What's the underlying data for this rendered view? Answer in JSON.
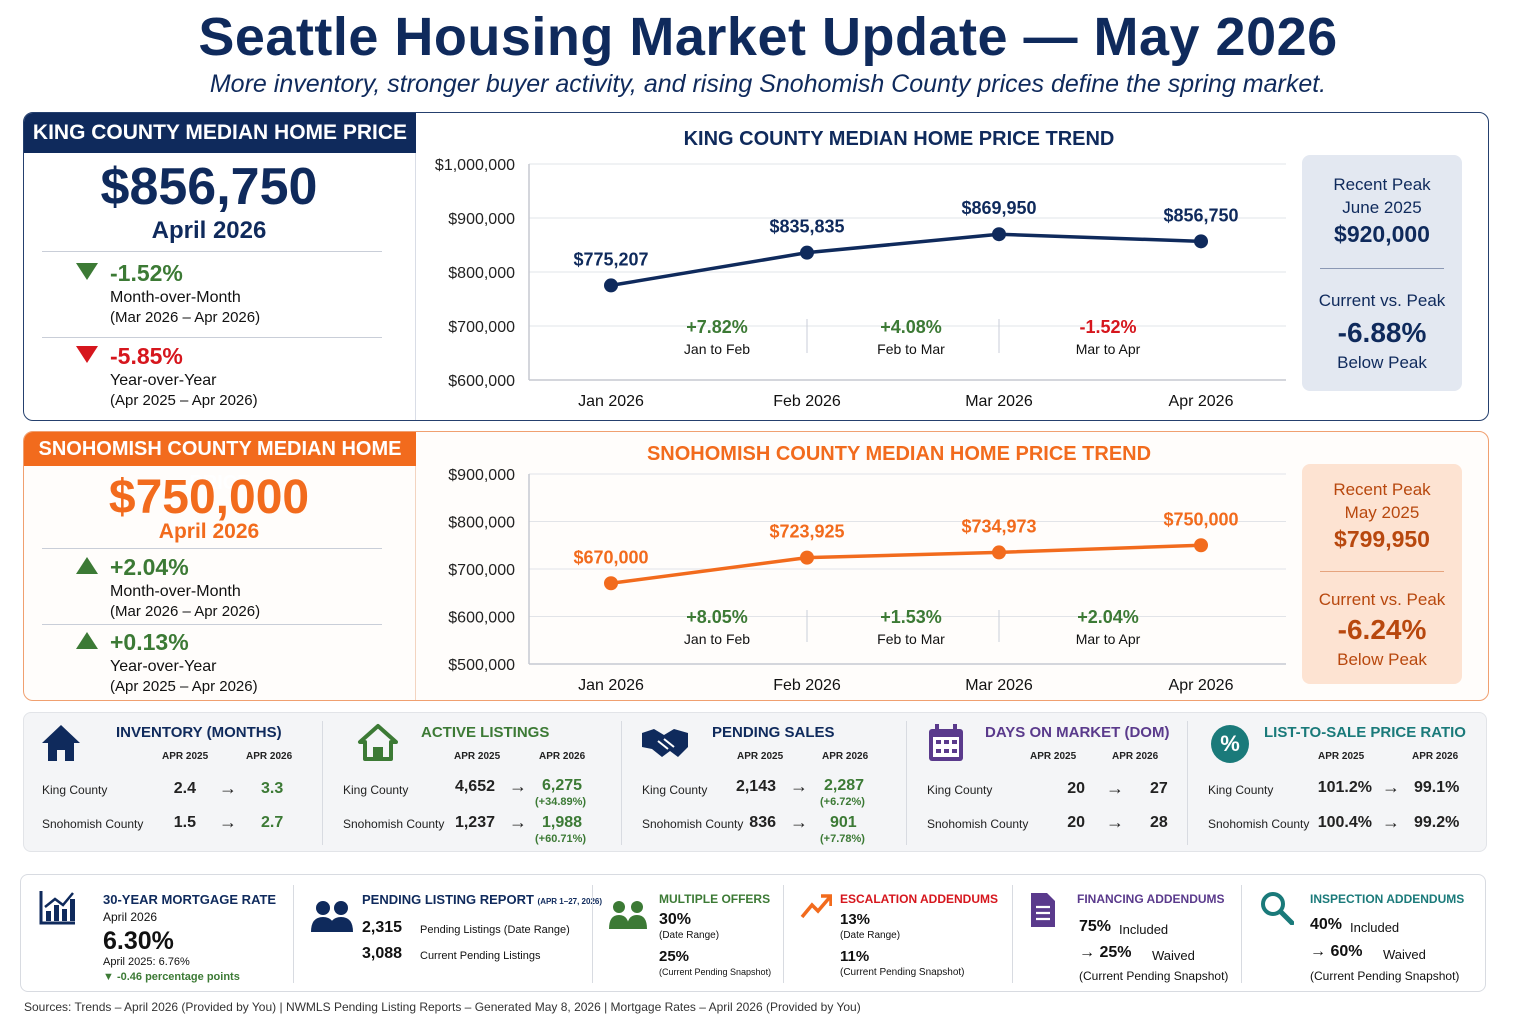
{
  "title": "Seattle Housing Market Update — May 2026",
  "subtitle": "More inventory, stronger buyer activity, and rising Snohomish County prices define the spring market.",
  "king": {
    "header": "KING COUNTY MEDIAN HOME PRICE",
    "value": "$856,750",
    "date": "April 2026",
    "mom": {
      "pct": "-1.52%",
      "label": "Month-over-Month",
      "range": "(Mar 2026 – Apr 2026)"
    },
    "yoy": {
      "pct": "-5.85%",
      "label": "Year-over-Year",
      "range": "(Apr 2025 – Apr 2026)"
    },
    "peak": {
      "l1": "Recent Peak",
      "l2": "June 2025",
      "value": "$920,000",
      "cv": "Current vs. Peak",
      "pct": "-6.88%",
      "below": "Below Peak"
    }
  },
  "snoh": {
    "header": "SNOHOMISH COUNTY MEDIAN HOME PRICE",
    "value": "$750,000",
    "date": "April 2026",
    "mom": {
      "pct": "+2.04%",
      "label": "Month-over-Month",
      "range": "(Mar 2026 – Apr 2026)"
    },
    "yoy": {
      "pct": "+0.13%",
      "label": "Year-over-Year",
      "range": "(Apr 2025 – Apr 2026)"
    },
    "peak": {
      "l1": "Recent Peak",
      "l2": "May 2025",
      "value": "$799,950",
      "cv": "Current vs. Peak",
      "pct": "-6.24%",
      "below": "Below Peak"
    }
  },
  "chart_data": [
    {
      "type": "line",
      "title": "KING COUNTY MEDIAN HOME PRICE TREND",
      "categories": [
        "Jan 2026",
        "Feb 2026",
        "Mar 2026",
        "Apr 2026"
      ],
      "values": [
        775207,
        835835,
        869950,
        856750
      ],
      "labels": [
        "$775,207",
        "$835,835",
        "$869,950",
        "$856,750"
      ],
      "ylim": [
        600000,
        1000000
      ],
      "yticks": [
        "$1,000,000",
        "$900,000",
        "$800,000",
        "$700,000",
        "$600,000"
      ],
      "ytick_values": [
        1000000,
        900000,
        800000,
        700000,
        600000
      ],
      "changes": [
        {
          "pct": "+7.82%",
          "label": "Jan to Feb",
          "color": "#3c7a35"
        },
        {
          "pct": "+4.08%",
          "label": "Feb to Mar",
          "color": "#3c7a35"
        },
        {
          "pct": "-1.52%",
          "label": "Mar to Apr",
          "color": "#d6161d"
        }
      ],
      "color": "#0f2a5c",
      "grid": true
    },
    {
      "type": "line",
      "title": "SNOHOMISH COUNTY MEDIAN HOME PRICE TREND",
      "categories": [
        "Jan 2026",
        "Feb 2026",
        "Mar 2026",
        "Apr 2026"
      ],
      "values": [
        670000,
        723925,
        734973,
        750000
      ],
      "labels": [
        "$670,000",
        "$723,925",
        "$734,973",
        "$750,000"
      ],
      "ylim": [
        500000,
        900000
      ],
      "yticks": [
        "$900,000",
        "$800,000",
        "$700,000",
        "$600,000",
        "$500,000"
      ],
      "ytick_values": [
        900000,
        800000,
        700000,
        600000,
        500000
      ],
      "changes": [
        {
          "pct": "+8.05%",
          "label": "Jan to Feb",
          "color": "#3c7a35"
        },
        {
          "pct": "+1.53%",
          "label": "Feb to Mar",
          "color": "#3c7a35"
        },
        {
          "pct": "+2.04%",
          "label": "Mar to Apr",
          "color": "#3c7a35"
        }
      ],
      "color": "#f26b1d",
      "grid": true
    }
  ],
  "metrics": {
    "king_label": "King County",
    "snoh_label": "Snohomish County",
    "h1": "APR 2025",
    "h2": "APR 2026",
    "arrow": "→",
    "inventory": {
      "title": "INVENTORY (MONTHS)",
      "k1": "2.4",
      "k2": "3.3",
      "s1": "1.5",
      "s2": "2.7"
    },
    "active": {
      "title": "ACTIVE LISTINGS",
      "k1": "4,652",
      "k2": "6,275",
      "ksub": "(+34.89%)",
      "s1": "1,237",
      "s2": "1,988",
      "ssub": "(+60.71%)"
    },
    "pending": {
      "title": "PENDING SALES",
      "k1": "2,143",
      "k2": "2,287",
      "ksub": "(+6.72%)",
      "s1": "836",
      "s2": "901",
      "ssub": "(+7.78%)"
    },
    "dom": {
      "title": "DAYS ON MARKET (DOM)",
      "k1": "20",
      "k2": "27",
      "s1": "20",
      "s2": "28"
    },
    "ratio": {
      "title": "LIST-TO-SALE PRICE RATIO",
      "k1": "101.2%",
      "k2": "99.1%",
      "s1": "100.4%",
      "s2": "99.2%"
    }
  },
  "bottom": {
    "mortgage": {
      "title": "30-YEAR MORTGAGE RATE",
      "date": "April 2026",
      "value": "6.30%",
      "prev": "April 2025: 6.76%",
      "chg": "▼ -0.46 percentage points"
    },
    "report": {
      "title": "PENDING LISTING REPORT",
      "title_sub": "(APR 1–27, 2026)",
      "n1": "2,315",
      "l1": "Pending Listings (Date Range)",
      "n2": "3,088",
      "l2": "Current Pending Listings"
    },
    "multiple": {
      "title": "MULTIPLE OFFERS",
      "v1": "30%",
      "l1": "(Date Range)",
      "v2": "25%",
      "l2": "(Current Pending Snapshot)"
    },
    "escalation": {
      "title": "ESCALATION ADDENDUMS",
      "v1": "13%",
      "l1": "(Date Range)",
      "v2": "11%",
      "l2": "(Current Pending Snapshot)"
    },
    "financing": {
      "title": "FINANCING ADDENDUMS",
      "v1": "75%",
      "t1": "Included",
      "v2": "→  25%",
      "t2": "Waived",
      "l": "(Current Pending Snapshot)"
    },
    "inspection": {
      "title": "INSPECTION ADDENDUMS",
      "v1": "40%",
      "t1": "Included",
      "v2": "→  60%",
      "t2": "Waived",
      "l": "(Current Pending Snapshot)"
    }
  },
  "sources": "Sources: Trends – April 2026 (Provided by You)    |    NWMLS Pending Listing Reports – Generated May 8, 2026    |    Mortgage Rates – April 2026 (Provided by You)"
}
